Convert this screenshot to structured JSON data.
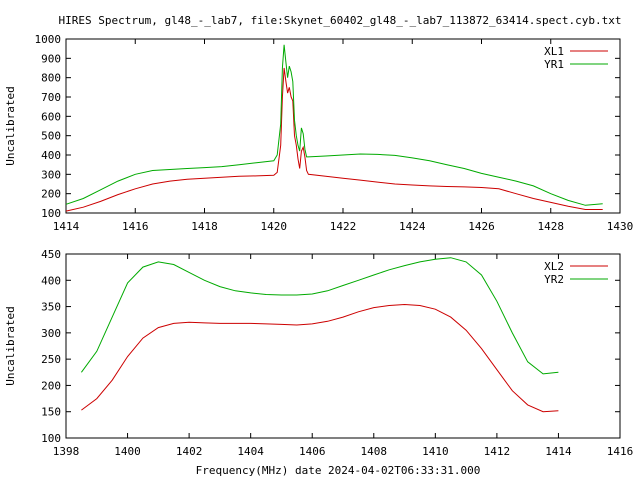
{
  "title": "HIRES Spectrum, gl48_-_lab7, file:Skynet_60402_gl48_-_lab7_113872_63414.spect.cyb.txt",
  "xlabel": "Frequency(MHz) date 2024-04-02T06:33:31.000",
  "colors": {
    "red": "#cc0000",
    "green": "#00aa00",
    "axes": "#000000"
  },
  "chart_data": [
    {
      "type": "line",
      "ylabel": "Uncalibrated",
      "xlim": [
        1414,
        1430
      ],
      "ylim": [
        100,
        1000
      ],
      "xticks": [
        1414,
        1416,
        1418,
        1420,
        1422,
        1424,
        1426,
        1428,
        1430
      ],
      "yticks": [
        100,
        200,
        300,
        400,
        500,
        600,
        700,
        800,
        900,
        1000
      ],
      "legend": "top-right",
      "series": [
        {
          "name": "XL1",
          "color": "#cc0000",
          "x": [
            1414.0,
            1414.5,
            1415.0,
            1415.5,
            1416.0,
            1416.5,
            1417.0,
            1417.5,
            1418.0,
            1418.5,
            1419.0,
            1419.5,
            1420.0,
            1420.1,
            1420.2,
            1420.25,
            1420.3,
            1420.35,
            1420.4,
            1420.45,
            1420.5,
            1420.55,
            1420.6,
            1420.65,
            1420.7,
            1420.75,
            1420.8,
            1420.85,
            1420.9,
            1420.95,
            1421.0,
            1421.5,
            1422.0,
            1422.5,
            1423.0,
            1423.5,
            1424.0,
            1424.5,
            1425.0,
            1425.5,
            1426.0,
            1426.5,
            1427.0,
            1427.5,
            1428.0,
            1428.5,
            1429.0,
            1429.5
          ],
          "y": [
            110,
            130,
            160,
            195,
            225,
            250,
            265,
            275,
            280,
            285,
            290,
            292,
            295,
            310,
            450,
            700,
            850,
            780,
            720,
            750,
            700,
            680,
            500,
            450,
            380,
            330,
            420,
            440,
            390,
            320,
            300,
            290,
            280,
            270,
            260,
            250,
            245,
            240,
            237,
            235,
            232,
            225,
            200,
            175,
            155,
            135,
            118,
            118
          ]
        },
        {
          "name": "YR1",
          "color": "#00aa00",
          "x": [
            1414.0,
            1414.5,
            1415.0,
            1415.5,
            1416.0,
            1416.5,
            1417.0,
            1417.5,
            1418.0,
            1418.5,
            1419.0,
            1419.5,
            1420.0,
            1420.1,
            1420.2,
            1420.25,
            1420.3,
            1420.35,
            1420.4,
            1420.45,
            1420.5,
            1420.55,
            1420.6,
            1420.65,
            1420.7,
            1420.75,
            1420.8,
            1420.85,
            1420.9,
            1420.95,
            1421.0,
            1421.5,
            1422.0,
            1422.5,
            1423.0,
            1423.5,
            1424.0,
            1424.5,
            1425.0,
            1425.5,
            1426.0,
            1426.5,
            1427.0,
            1427.5,
            1428.0,
            1428.5,
            1429.0,
            1429.5
          ],
          "y": [
            145,
            175,
            220,
            265,
            300,
            320,
            325,
            330,
            335,
            340,
            350,
            360,
            370,
            400,
            560,
            850,
            970,
            880,
            800,
            860,
            830,
            780,
            580,
            500,
            450,
            420,
            540,
            510,
            430,
            390,
            390,
            395,
            400,
            405,
            403,
            398,
            385,
            370,
            350,
            330,
            305,
            285,
            265,
            240,
            200,
            165,
            140,
            148
          ]
        }
      ]
    },
    {
      "type": "line",
      "ylabel": "Uncalibrated",
      "xlim": [
        1398,
        1416
      ],
      "ylim": [
        100,
        450
      ],
      "xticks": [
        1398,
        1400,
        1402,
        1404,
        1406,
        1408,
        1410,
        1412,
        1414,
        1416
      ],
      "yticks": [
        100,
        150,
        200,
        250,
        300,
        350,
        400,
        450
      ],
      "legend": "top-right",
      "series": [
        {
          "name": "XL2",
          "color": "#cc0000",
          "x": [
            1398.5,
            1399.0,
            1399.5,
            1400.0,
            1400.5,
            1401.0,
            1401.5,
            1402.0,
            1402.5,
            1403.0,
            1403.5,
            1404.0,
            1404.5,
            1405.0,
            1405.5,
            1406.0,
            1406.5,
            1407.0,
            1407.5,
            1408.0,
            1408.5,
            1409.0,
            1409.5,
            1410.0,
            1410.5,
            1411.0,
            1411.5,
            1412.0,
            1412.5,
            1413.0,
            1413.5,
            1414.0
          ],
          "y": [
            153,
            175,
            210,
            255,
            290,
            310,
            318,
            320,
            319,
            318,
            318,
            318,
            317,
            316,
            315,
            317,
            322,
            330,
            340,
            348,
            352,
            354,
            352,
            345,
            330,
            305,
            270,
            230,
            190,
            163,
            150,
            152
          ]
        },
        {
          "name": "YR2",
          "color": "#00aa00",
          "x": [
            1398.5,
            1399.0,
            1399.5,
            1400.0,
            1400.5,
            1401.0,
            1401.5,
            1402.0,
            1402.5,
            1403.0,
            1403.5,
            1404.0,
            1404.5,
            1405.0,
            1405.5,
            1406.0,
            1406.5,
            1407.0,
            1407.5,
            1408.0,
            1408.5,
            1409.0,
            1409.5,
            1410.0,
            1410.5,
            1411.0,
            1411.5,
            1412.0,
            1412.5,
            1413.0,
            1413.5,
            1414.0
          ],
          "y": [
            225,
            265,
            330,
            395,
            425,
            435,
            430,
            415,
            400,
            388,
            380,
            376,
            373,
            372,
            372,
            374,
            380,
            390,
            400,
            410,
            420,
            428,
            435,
            440,
            443,
            435,
            410,
            360,
            300,
            245,
            222,
            225
          ]
        }
      ]
    }
  ]
}
